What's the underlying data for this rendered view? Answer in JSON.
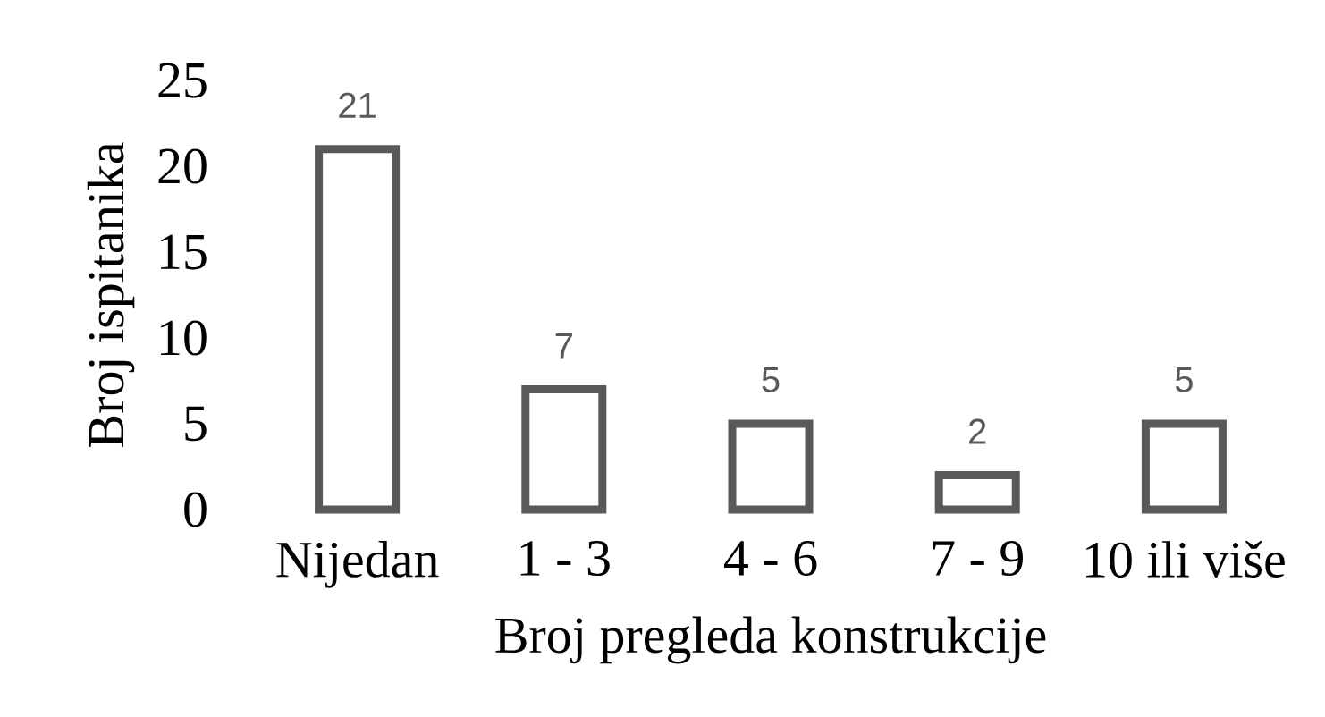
{
  "chart_data": {
    "type": "bar",
    "xlabel": "Broj pregleda konstrukcije",
    "ylabel": "Broj ispitanika",
    "categories": [
      "Nijedan",
      "1 - 3",
      "4 - 6",
      "7 - 9",
      "10 ili više"
    ],
    "values": [
      21,
      7,
      5,
      2,
      5
    ],
    "color": "#595959",
    "ylim": [
      0,
      25
    ],
    "yticks": [
      0,
      5,
      10,
      15,
      20,
      25
    ],
    "data_labels": true
  }
}
